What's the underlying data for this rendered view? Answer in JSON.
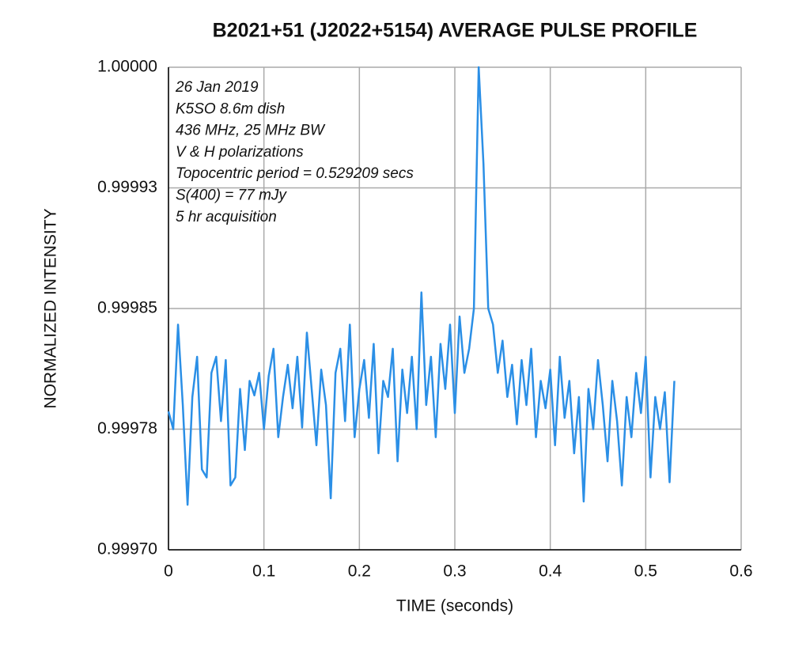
{
  "chart_data": {
    "type": "line",
    "title": "B2021+51 (J2022+5154) AVERAGE PULSE PROFILE",
    "xlabel": "TIME (seconds)",
    "ylabel": "NORMALIZED INTENSITY",
    "annotations": [
      "26 Jan 2019",
      "K5SO 8.6m dish",
      "436 MHz, 25 MHz BW",
      "V & H polarizations",
      "Topocentric period =  0.529209 secs",
      "S(400) = 77 mJy",
      "5 hr acquisition"
    ],
    "x": [
      0,
      0.005,
      0.01,
      0.015,
      0.02,
      0.025,
      0.03,
      0.035,
      0.04,
      0.045,
      0.05,
      0.055,
      0.06,
      0.065,
      0.07,
      0.075,
      0.08,
      0.085,
      0.09,
      0.095,
      0.1,
      0.105,
      0.11,
      0.115,
      0.12,
      0.125,
      0.13,
      0.135,
      0.14,
      0.145,
      0.15,
      0.155,
      0.16,
      0.165,
      0.17,
      0.175,
      0.18,
      0.185,
      0.19,
      0.195,
      0.2,
      0.205,
      0.21,
      0.215,
      0.22,
      0.225,
      0.23,
      0.235,
      0.24,
      0.245,
      0.25,
      0.255,
      0.26,
      0.265,
      0.27,
      0.275,
      0.28,
      0.285,
      0.29,
      0.295,
      0.3,
      0.305,
      0.31,
      0.315,
      0.32,
      0.325,
      0.33,
      0.335,
      0.34,
      0.345,
      0.35,
      0.355,
      0.36,
      0.365,
      0.37,
      0.375,
      0.38,
      0.385,
      0.39,
      0.395,
      0.4,
      0.405,
      0.41,
      0.415,
      0.42,
      0.425,
      0.43,
      0.435,
      0.44,
      0.445,
      0.45,
      0.455,
      0.46,
      0.465,
      0.47,
      0.475,
      0.48,
      0.485,
      0.49,
      0.495,
      0.5,
      0.505,
      0.51,
      0.515,
      0.52,
      0.525,
      0.53
    ],
    "series": [
      {
        "name": "B2021+51",
        "color": "#2b8fe6",
        "values": [
          0.999786,
          0.999775,
          0.99984,
          0.99979,
          0.999728,
          0.999795,
          0.99982,
          0.99975,
          0.999745,
          0.99981,
          0.99982,
          0.99978,
          0.999818,
          0.99974,
          0.999745,
          0.9998,
          0.999762,
          0.999805,
          0.999796,
          0.99981,
          0.999775,
          0.999808,
          0.999825,
          0.99977,
          0.999795,
          0.999815,
          0.999788,
          0.99982,
          0.999776,
          0.999835,
          0.9998,
          0.999765,
          0.999812,
          0.99979,
          0.999732,
          0.99981,
          0.999825,
          0.99978,
          0.99984,
          0.99977,
          0.9998,
          0.999818,
          0.999782,
          0.999828,
          0.99976,
          0.999805,
          0.999795,
          0.999825,
          0.999755,
          0.999812,
          0.999785,
          0.99982,
          0.999775,
          0.99986,
          0.99979,
          0.99982,
          0.99977,
          0.999828,
          0.9998,
          0.99984,
          0.999785,
          0.999845,
          0.99981,
          0.999825,
          0.99985,
          1,
          0.99994,
          0.99985,
          0.99984,
          0.99981,
          0.99983,
          0.999795,
          0.999815,
          0.999778,
          0.999818,
          0.99979,
          0.999825,
          0.99977,
          0.999805,
          0.999788,
          0.999812,
          0.999765,
          0.99982,
          0.999782,
          0.999805,
          0.99976,
          0.999795,
          0.99973,
          0.9998,
          0.999775,
          0.999818,
          0.99979,
          0.999755,
          0.999805,
          0.99978,
          0.99974,
          0.999795,
          0.99977,
          0.99981,
          0.999785,
          0.99982,
          0.999745,
          0.999795,
          0.999775,
          0.999798,
          0.999742,
          0.999805
        ]
      }
    ],
    "xlim": [
      0,
      0.6
    ],
    "xticks": [
      0,
      0.1,
      0.2,
      0.3,
      0.4,
      0.5,
      0.6
    ],
    "ylim": [
      0.9997,
      1
    ],
    "yticks": [
      {
        "value": 0.9997,
        "label": "0.99970"
      },
      {
        "value": 0.999775,
        "label": "0.99978"
      },
      0.99985,
      {
        "value": 0.999925,
        "label": "0.99993"
      },
      {
        "value": 1,
        "label": "1.00000"
      }
    ],
    "grid": true
  }
}
